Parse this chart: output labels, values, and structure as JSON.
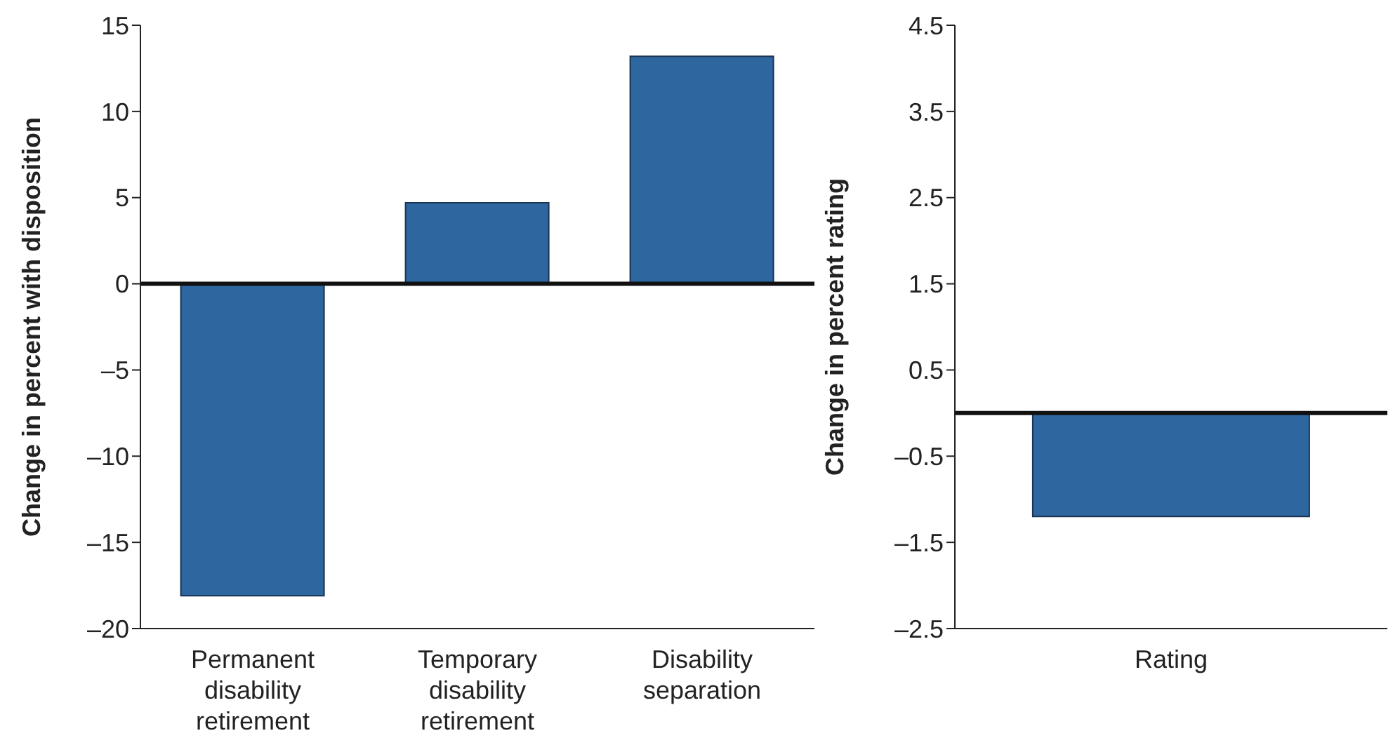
{
  "chart_data": [
    {
      "type": "bar",
      "ylabel": "Change in percent with disposition",
      "categories": [
        "Permanent disability retirement",
        "Temporary disability retirement",
        "Disability separation"
      ],
      "values": [
        -18.1,
        4.7,
        13.2
      ],
      "color": "#2e67a0",
      "ylim": [
        -20,
        15
      ],
      "yticks": [
        {
          "value": -20,
          "label": "–20"
        },
        {
          "value": -15,
          "label": "–15"
        },
        {
          "value": -10,
          "label": "–10"
        },
        {
          "value": -5,
          "label": "–5"
        },
        0,
        5,
        10,
        15
      ],
      "ref_lines": [
        {
          "axis": "y",
          "value": 0,
          "color": "#111111"
        }
      ]
    },
    {
      "type": "bar",
      "ylabel": "Change in percent rating",
      "categories": [
        "Rating"
      ],
      "values": [
        -1.2
      ],
      "color": "#2e67a0",
      "ylim": [
        -2.5,
        4.5
      ],
      "yticks": [
        {
          "value": -2.5,
          "label": "–2.5"
        },
        {
          "value": -1.5,
          "label": "–1.5"
        },
        {
          "value": -0.5,
          "label": "–0.5"
        },
        0.5,
        1.5,
        2.5,
        3.5,
        4.5
      ],
      "ref_lines": [
        {
          "axis": "y",
          "value": 0,
          "color": "#111111"
        }
      ]
    }
  ]
}
